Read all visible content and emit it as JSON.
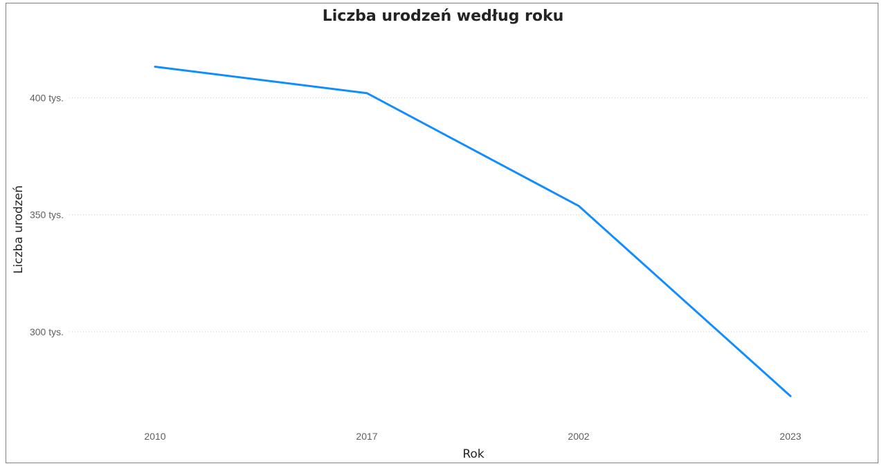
{
  "chart_data": {
    "type": "line",
    "title": "Liczba urodzeń według roku",
    "xlabel": "Rok",
    "ylabel": "Liczba urodzeń",
    "categories": [
      "2010",
      "2017",
      "2002",
      "2023"
    ],
    "series": [
      {
        "values": [
          413300,
          402000,
          353800,
          272500
        ],
        "color": "#118DFF"
      }
    ],
    "ylim": [
      263000,
      430000
    ],
    "yticks": [
      {
        "value": 300000,
        "label": "300 tys."
      },
      {
        "value": 350000,
        "label": "350 tys."
      },
      {
        "value": 400000,
        "label": "400 tys."
      }
    ],
    "grid": true,
    "legend": "none"
  }
}
